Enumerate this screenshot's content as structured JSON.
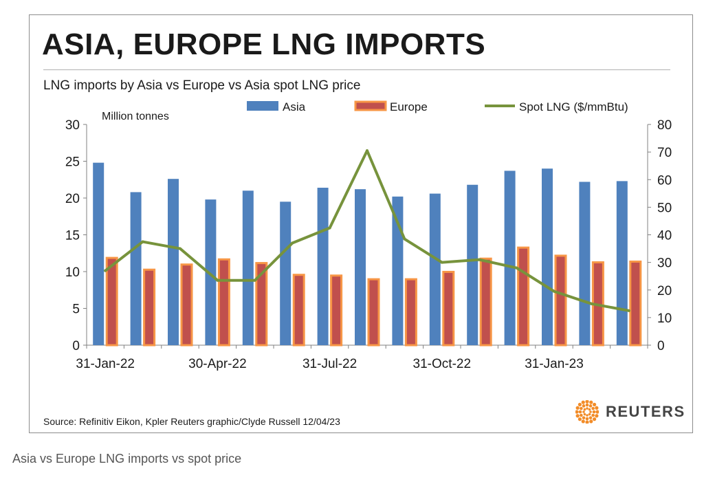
{
  "title": "ASIA, EUROPE LNG IMPORTS",
  "subtitle": "LNG imports by Asia vs Europe vs Asia spot LNG price",
  "source_note": "Source: Refinitiv Eikon, Kpler    Reuters graphic/Clyde Russell 12/04/23",
  "brand": "REUTERS",
  "caption": "Asia vs Europe LNG imports vs spot price",
  "colors": {
    "asia": "#4f81bd",
    "europe_fill": "#c0504d",
    "europe_border": "#f79646",
    "spot": "#77933c"
  },
  "chart_data": {
    "type": "bar",
    "combo": "bar+line",
    "x_tick_labels": [
      "31-Jan-22",
      "30-Apr-22",
      "31-Jul-22",
      "31-Oct-22",
      "31-Jan-23"
    ],
    "x": [
      "2022-01-31",
      "2022-02-28",
      "2022-03-31",
      "2022-04-30",
      "2022-05-31",
      "2022-06-30",
      "2022-07-31",
      "2022-08-31",
      "2022-09-30",
      "2022-10-31",
      "2022-11-30",
      "2022-12-31",
      "2023-01-31",
      "2023-02-28",
      "2023-03-31"
    ],
    "ylabel_left": "Million tonnes",
    "ylim_left": [
      0,
      30
    ],
    "yticks_left": [
      "0",
      "5",
      "10",
      "15",
      "20",
      "25",
      "30"
    ],
    "ylim_right": [
      0,
      80
    ],
    "yticks_right": [
      "0",
      "10",
      "20",
      "30",
      "40",
      "50",
      "60",
      "70",
      "80"
    ],
    "legend": "top",
    "series": [
      {
        "name": "Asia",
        "type": "bar",
        "axis": "left",
        "values": [
          24.8,
          20.8,
          22.6,
          19.8,
          21.0,
          19.5,
          21.4,
          21.2,
          20.2,
          20.6,
          21.8,
          23.7,
          24.0,
          22.2,
          22.3
        ]
      },
      {
        "name": "Europe",
        "type": "bar",
        "axis": "left",
        "values": [
          12.0,
          10.4,
          11.1,
          11.8,
          11.3,
          9.7,
          9.6,
          9.1,
          9.1,
          10.1,
          11.9,
          13.4,
          12.3,
          11.4,
          11.5
        ]
      },
      {
        "name": "Spot LNG ($/mmBtu)",
        "type": "line",
        "axis": "right",
        "values": [
          27,
          37.5,
          35,
          23.5,
          23.5,
          37,
          42.5,
          70.5,
          38.5,
          30,
          31,
          28,
          19.5,
          15,
          12.5
        ]
      }
    ]
  }
}
